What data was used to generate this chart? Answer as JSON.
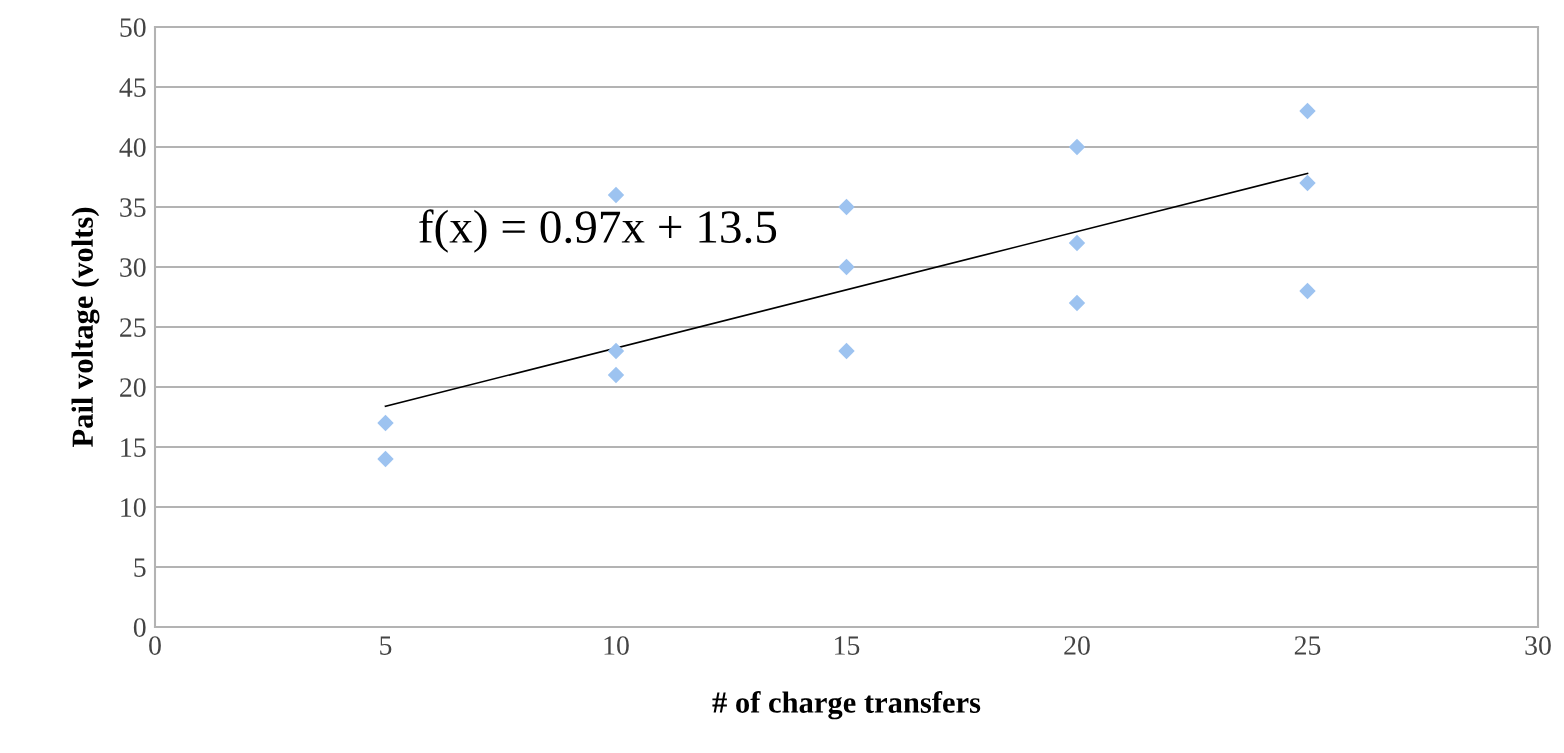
{
  "chart_data": {
    "type": "scatter",
    "xlabel": "# of charge transfers",
    "ylabel": "Pail voltage (volts)",
    "xlim": [
      0,
      30
    ],
    "xticks": [
      0,
      5,
      10,
      15,
      20,
      25,
      30
    ],
    "ylim": [
      0,
      50
    ],
    "yticks": [
      0,
      5,
      10,
      15,
      20,
      25,
      30,
      35,
      40,
      45,
      50
    ],
    "grid": "y",
    "legend": false,
    "annotations": [
      "f(x) = 0.97x + 13.5"
    ],
    "series": [
      {
        "marker": "diamond",
        "color": "#9dc3f0",
        "x": [
          5,
          5,
          10,
          10,
          10,
          15,
          15,
          15,
          20,
          20,
          20,
          25,
          25,
          25
        ],
        "values": [
          17,
          14,
          36,
          23,
          21,
          35,
          30,
          23,
          40,
          32,
          27,
          43,
          37,
          28
        ]
      },
      {
        "type": "line",
        "marker": "none",
        "color": "#000000",
        "x": [
          5,
          25
        ],
        "values": [
          18.4,
          37.8
        ]
      }
    ]
  }
}
